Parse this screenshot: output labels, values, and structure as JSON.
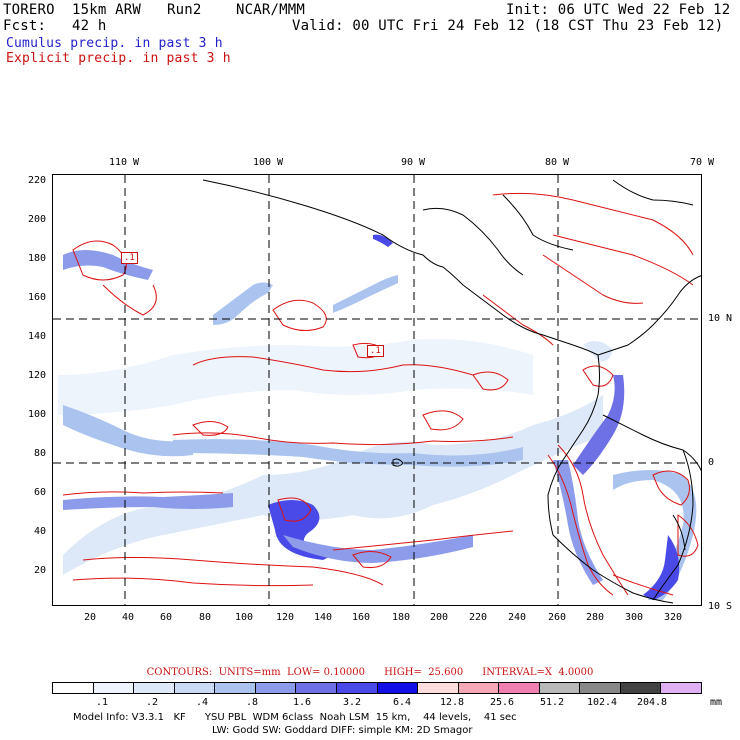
{
  "header": {
    "line1_left": "TORERO  15km ARW   Run2    NCAR/MMM",
    "line1_right": "Init: 06 UTC Wed 22 Feb 12",
    "line2_left": "Fcst:   42 h",
    "line2_right": "Valid: 00 UTC Fri 24 Feb 12 (18 CST Thu 23 Feb 12)",
    "line3": "Cumulus precip. in past 3 h",
    "line4": "Explicit precip. in past 3 h"
  },
  "axes": {
    "top_ticks": [
      "110 W",
      "100 W",
      "90 W",
      "80 W",
      "70 W"
    ],
    "right_ticks": [
      "10 N",
      "0",
      "10 S"
    ],
    "bottom_ticks": [
      "20",
      "40",
      "60",
      "80",
      "100",
      "120",
      "140",
      "160",
      "180",
      "200",
      "220",
      "240",
      "260",
      "280",
      "300",
      "320"
    ],
    "left_ticks": [
      "220",
      "200",
      "180",
      "160",
      "140",
      "120",
      "100",
      "80",
      "60",
      "40",
      "20"
    ]
  },
  "map_labels": {
    "box1": ".1",
    "box2": ".1"
  },
  "contours": {
    "text": "CONTOURS:  UNITS=mm  LOW= 0.10000      HIGH=  25.600      INTERVAL=X  4.0000"
  },
  "colorbar": {
    "colors": [
      "#ffffff",
      "#eef4fc",
      "#dde8f8",
      "#c8daf4",
      "#aac4ef",
      "#8c9cea",
      "#6e70e6",
      "#4a4ae8",
      "#1010e6",
      "#ffdddd",
      "#f4a8b8",
      "#f080b0",
      "#b8b8b8",
      "#888888",
      "#444444",
      "#e0b0f4"
    ],
    "labels": [
      ".1",
      ".2",
      ".4",
      ".8",
      "1.6",
      "3.2",
      "6.4",
      "12.8",
      "25.6",
      "51.2",
      "102.4",
      "204.8"
    ],
    "unit": "mm"
  },
  "footer": {
    "line1": "Model Info: V3.3.1   KF      YSU PBL  WDM 6class  Noah LSM  15 km,    44 levels,    41 sec",
    "line2": "LW: Godd SW: Goddard DIFF: simple KM: 2D Smagor"
  }
}
